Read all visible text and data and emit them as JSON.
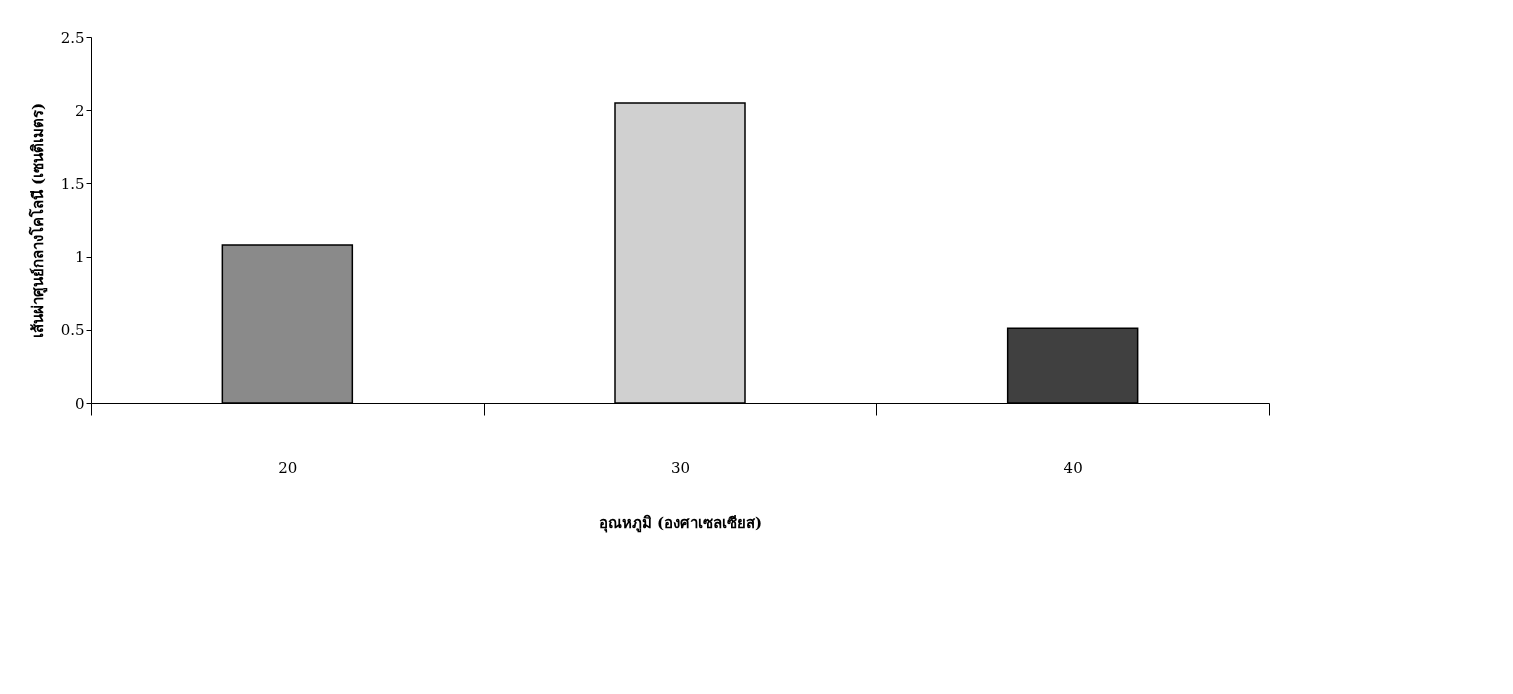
{
  "chart_data": {
    "type": "bar",
    "xlabel": "อุณหภูมิ (องศาเซลเซียส)",
    "ylabel": "เส้นผ่าศูนย์กลางโคโลนี (เซนติเมตร)",
    "categories": [
      "20",
      "30",
      "40"
    ],
    "values": [
      1.08,
      2.05,
      0.51
    ],
    "colors": [
      "#8a8a8a",
      "#d0d0d0",
      "#404040"
    ],
    "ylim": [
      0,
      2.5
    ],
    "yticks": [
      0,
      0.5,
      1,
      1.5,
      2,
      2.5
    ],
    "grid": false
  }
}
